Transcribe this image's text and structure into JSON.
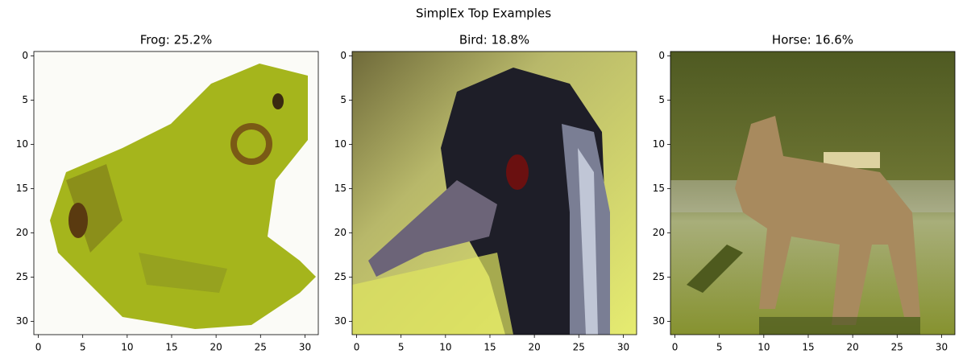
{
  "suptitle": "SimplEx Top Examples",
  "chart_data": [
    {
      "type": "image",
      "title": "Frog: 25.2%",
      "xlim": [
        -0.5,
        31.5
      ],
      "ylim": [
        31.5,
        -0.5
      ],
      "xticks": [
        0,
        5,
        10,
        15,
        20,
        25,
        30
      ],
      "yticks": [
        0,
        5,
        10,
        15,
        20,
        25,
        30
      ]
    },
    {
      "type": "image",
      "title": "Bird: 18.8%",
      "xlim": [
        -0.5,
        31.5
      ],
      "ylim": [
        31.5,
        -0.5
      ],
      "xticks": [
        0,
        5,
        10,
        15,
        20,
        25,
        30
      ],
      "yticks": [
        0,
        5,
        10,
        15,
        20,
        25,
        30
      ]
    },
    {
      "type": "image",
      "title": "Horse: 16.6%",
      "xlim": [
        -0.5,
        31.5
      ],
      "ylim": [
        31.5,
        -0.5
      ],
      "xticks": [
        0,
        5,
        10,
        15,
        20,
        25,
        30
      ],
      "yticks": [
        0,
        5,
        10,
        15,
        20,
        25,
        30
      ]
    }
  ]
}
